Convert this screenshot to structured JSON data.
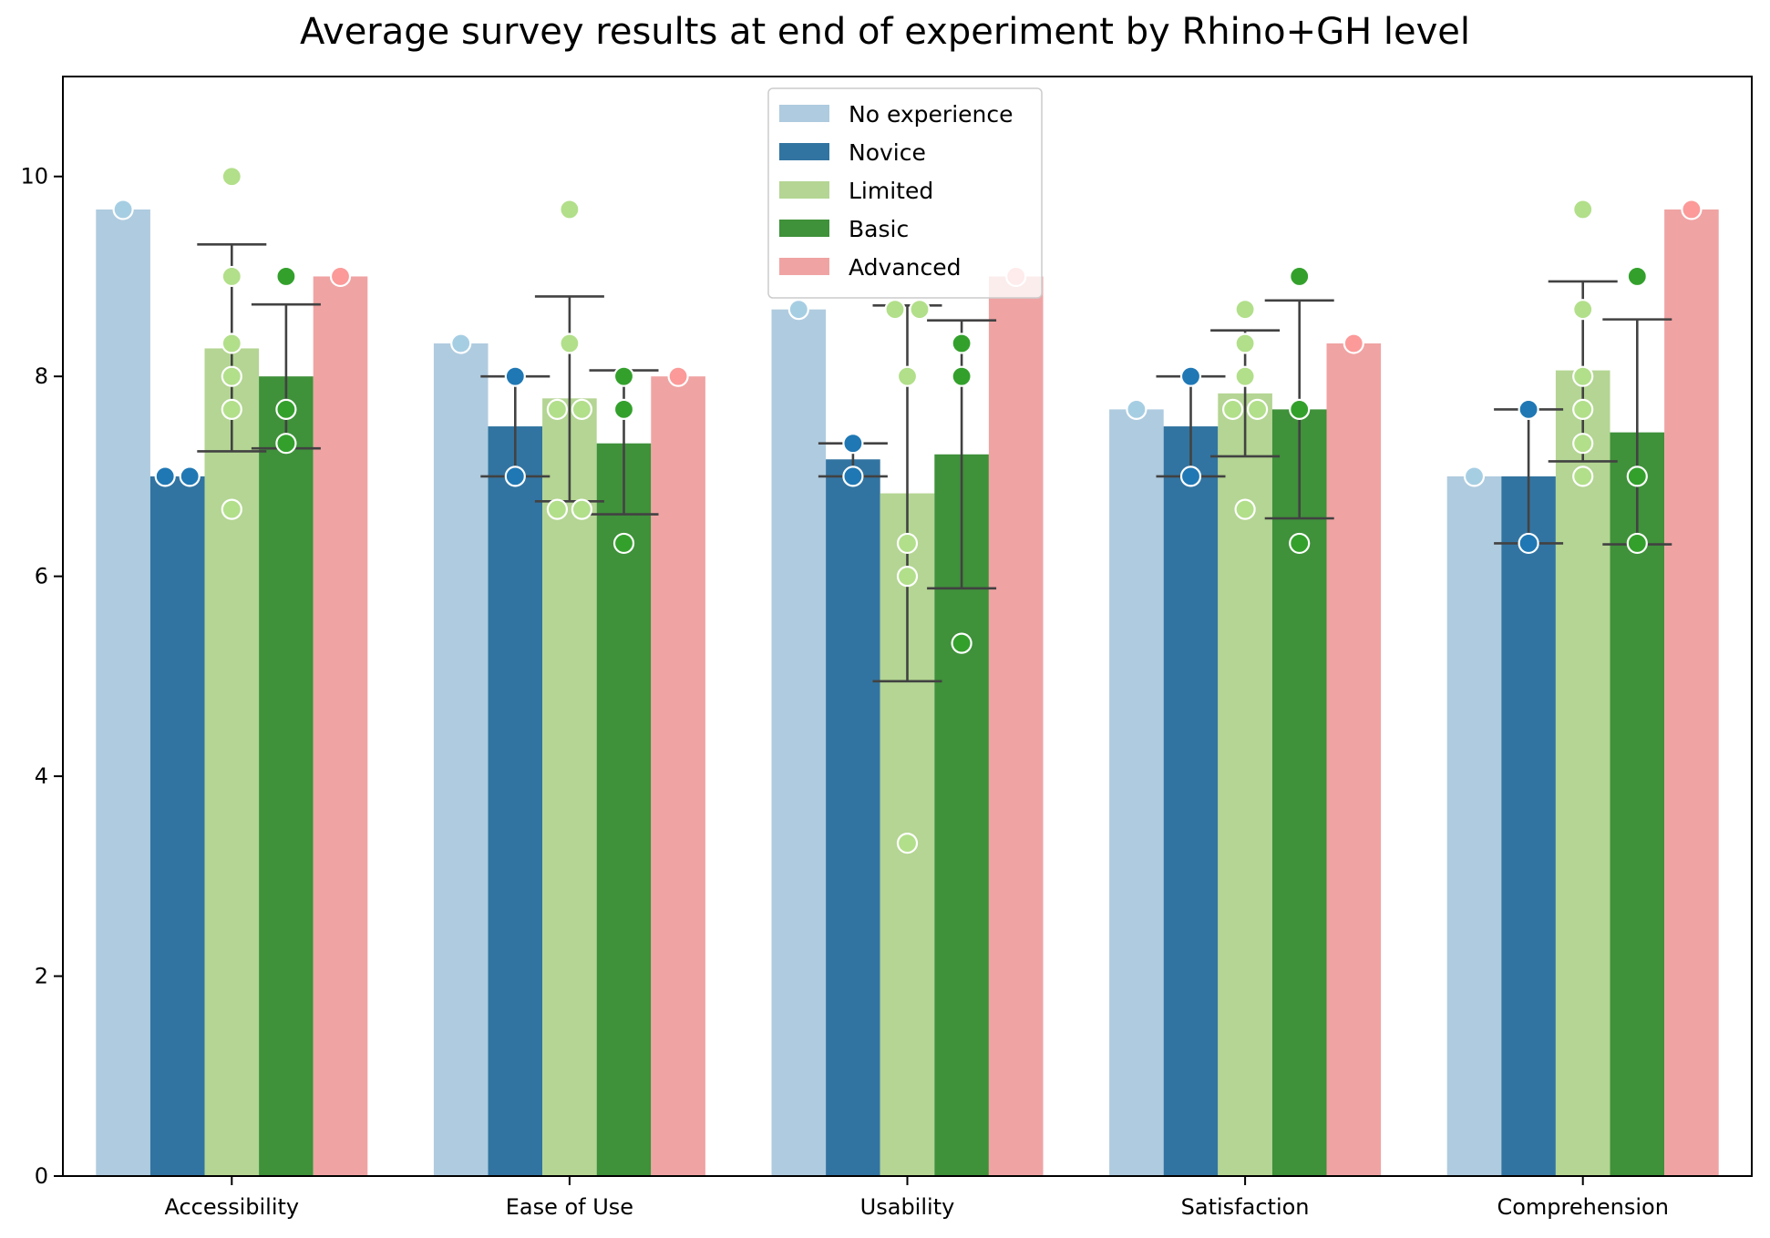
{
  "chart_data": {
    "type": "bar",
    "title": "Average survey results at end of experiment by Rhino+GH level",
    "xlabel": "",
    "ylabel": "",
    "ylim": [
      0,
      11
    ],
    "yticks": [
      0,
      2,
      4,
      6,
      8,
      10
    ],
    "grid": false,
    "legend_position": "top-center",
    "categories": [
      "Accessibility",
      "Ease of Use",
      "Usability",
      "Satisfaction",
      "Comprehension"
    ],
    "series": [
      {
        "name": "No experience",
        "color": "#afcbdf",
        "dot_color": "#a6cee3",
        "values": [
          9.67,
          8.33,
          8.67,
          7.67,
          7.0
        ],
        "error": [
          null,
          null,
          null,
          null,
          null
        ],
        "points": [
          [
            9.67
          ],
          [
            8.33
          ],
          [
            8.67
          ],
          [
            7.67
          ],
          [
            7.0
          ]
        ]
      },
      {
        "name": "Novice",
        "color": "#3274a1",
        "dot_color": "#1f78b4",
        "values": [
          7.0,
          7.5,
          7.17,
          7.5,
          7.0
        ],
        "error": [
          null,
          [
            7.0,
            8.0
          ],
          [
            7.0,
            7.33
          ],
          [
            7.0,
            8.0
          ],
          [
            6.33,
            7.67
          ]
        ],
        "points": [
          [
            7.0,
            7.0
          ],
          [
            8.0,
            7.0
          ],
          [
            7.33,
            7.0
          ],
          [
            8.0,
            7.0
          ],
          [
            7.67,
            6.33
          ]
        ]
      },
      {
        "name": "Limited",
        "color": "#b4d593",
        "dot_color": "#b2df8a",
        "values": [
          8.28,
          7.78,
          6.83,
          7.83,
          8.06
        ],
        "error": [
          [
            7.25,
            9.32
          ],
          [
            6.75,
            8.8
          ],
          [
            4.95,
            8.71
          ],
          [
            7.2,
            8.46
          ],
          [
            7.15,
            8.95
          ]
        ],
        "points": [
          [
            10.0,
            9.0,
            8.33,
            8.0,
            7.67,
            6.67
          ],
          [
            9.67,
            8.33,
            7.67,
            7.67,
            6.67,
            6.67
          ],
          [
            8.67,
            8.67,
            8.0,
            6.33,
            6.0,
            3.33
          ],
          [
            8.67,
            8.33,
            8.0,
            7.67,
            7.67,
            6.67
          ],
          [
            9.67,
            8.67,
            8.0,
            7.67,
            7.33,
            7.0
          ]
        ]
      },
      {
        "name": "Basic",
        "color": "#3f913a",
        "dot_color": "#33a02c",
        "values": [
          8.0,
          7.33,
          7.22,
          7.67,
          7.44
        ],
        "error": [
          [
            7.28,
            8.72
          ],
          [
            6.62,
            8.06
          ],
          [
            5.88,
            8.56
          ],
          [
            6.58,
            8.76
          ],
          [
            6.32,
            8.57
          ]
        ],
        "points": [
          [
            9.0,
            7.67,
            7.33
          ],
          [
            8.0,
            7.67,
            6.33
          ],
          [
            8.33,
            8.0,
            5.33
          ],
          [
            9.0,
            7.67,
            6.33
          ],
          [
            9.0,
            7.0,
            6.33
          ]
        ]
      },
      {
        "name": "Advanced",
        "color": "#f0a3a3",
        "dot_color": "#fb9a99",
        "values": [
          9.0,
          8.0,
          9.0,
          8.33,
          9.67
        ],
        "error": [
          null,
          null,
          null,
          null,
          null
        ],
        "points": [
          [
            9.0
          ],
          [
            8.0
          ],
          [
            9.0
          ],
          [
            8.33
          ],
          [
            9.67
          ]
        ]
      }
    ]
  }
}
